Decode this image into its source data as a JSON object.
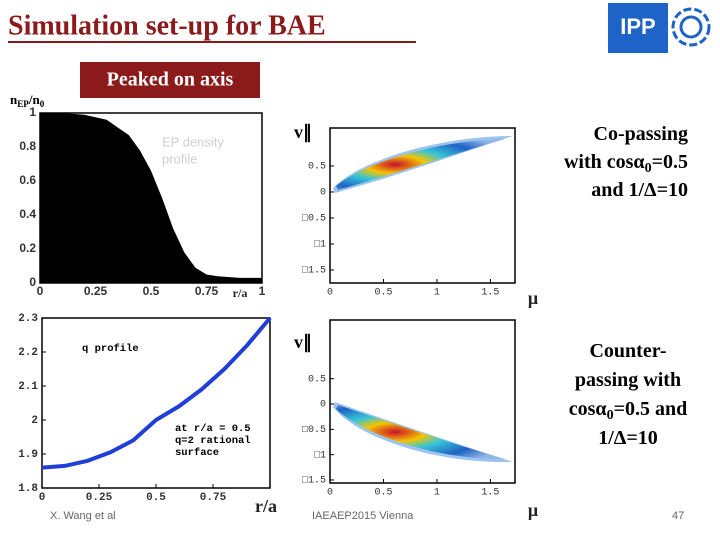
{
  "slide": {
    "title": "Simulation set-up for BAE",
    "logo_text": "IPP",
    "tag": "Peaked on axis",
    "notes": [
      [
        [
          "Co-passing"
        ],
        [
          "with cosα",
          "0",
          "=0.5"
        ],
        [
          "and 1/Δ=10"
        ]
      ],
      [
        [
          "Counter-"
        ],
        [
          "passing with"
        ],
        [
          "cosα",
          "0",
          "=0.5 and"
        ],
        [
          "1/Δ=10"
        ]
      ]
    ],
    "author": "X. Wang et al",
    "event": "IAEAEP2015 Vienna",
    "page": "47"
  },
  "chart_data": [
    {
      "type": "area",
      "annotations": [
        "EP density",
        "profile"
      ],
      "x_label": "r/a",
      "y_label": [
        "n",
        "EP",
        "/n",
        "0"
      ],
      "color": "#000000",
      "x": [
        0,
        0.1,
        0.2,
        0.3,
        0.4,
        0.45,
        0.5,
        0.55,
        0.6,
        0.65,
        0.7,
        0.75,
        0.8,
        0.9,
        1
      ],
      "y": [
        1,
        1,
        0.99,
        0.96,
        0.87,
        0.78,
        0.66,
        0.5,
        0.32,
        0.18,
        0.09,
        0.05,
        0.04,
        0.03,
        0.03
      ],
      "xlim": [
        0,
        1
      ],
      "ylim": [
        0,
        1
      ],
      "xticks": [
        0,
        0.25,
        0.5,
        0.75,
        1
      ],
      "yticks": [
        0,
        0.2,
        0.4,
        0.6,
        0.8,
        1
      ]
    },
    {
      "type": "line",
      "annotations": [
        "q profile",
        "at r/a = 0.5",
        "q=2 rational",
        "surface"
      ],
      "x_label": "r/a",
      "color": "#1f3fd6",
      "x": [
        0,
        0.1,
        0.2,
        0.3,
        0.4,
        0.5,
        0.6,
        0.7,
        0.8,
        0.9,
        1
      ],
      "y": [
        1.86,
        1.865,
        1.88,
        1.905,
        1.94,
        2.0,
        2.04,
        2.09,
        2.15,
        2.22,
        2.3
      ],
      "xlim": [
        0,
        1
      ],
      "ylim": [
        1.8,
        2.3
      ],
      "xticks": [
        0,
        0.25,
        0.5,
        0.75
      ],
      "yticks": [
        1.8,
        1.9,
        2,
        2.1,
        2.2,
        2.3
      ]
    },
    {
      "type": "contour",
      "x_label": "μ",
      "y_label": "v∥",
      "xlim": [
        0,
        1.73
      ],
      "ylim": [
        -1.75,
        1.23
      ],
      "xticks": [
        0,
        0.5,
        1,
        1.5
      ],
      "yticks": [
        0.5,
        0,
        {
          "value": -0.5,
          "label": "□0.5"
        },
        {
          "value": -1,
          "label": "□1"
        },
        {
          "value": -1.5,
          "label": "□1.5"
        }
      ]
    },
    {
      "type": "contour",
      "x_label": "μ",
      "y_label": "v∥",
      "xlim": [
        0,
        1.73
      ],
      "ylim": [
        -1.56,
        1.66
      ],
      "xticks": [
        0,
        0.5,
        1,
        1.5
      ],
      "yticks": [
        0.5,
        0,
        {
          "value": -0.5,
          "label": "□0.5"
        },
        {
          "value": -1,
          "label": "□1"
        },
        {
          "value": -1.5,
          "label": "□1.5"
        }
      ]
    }
  ]
}
